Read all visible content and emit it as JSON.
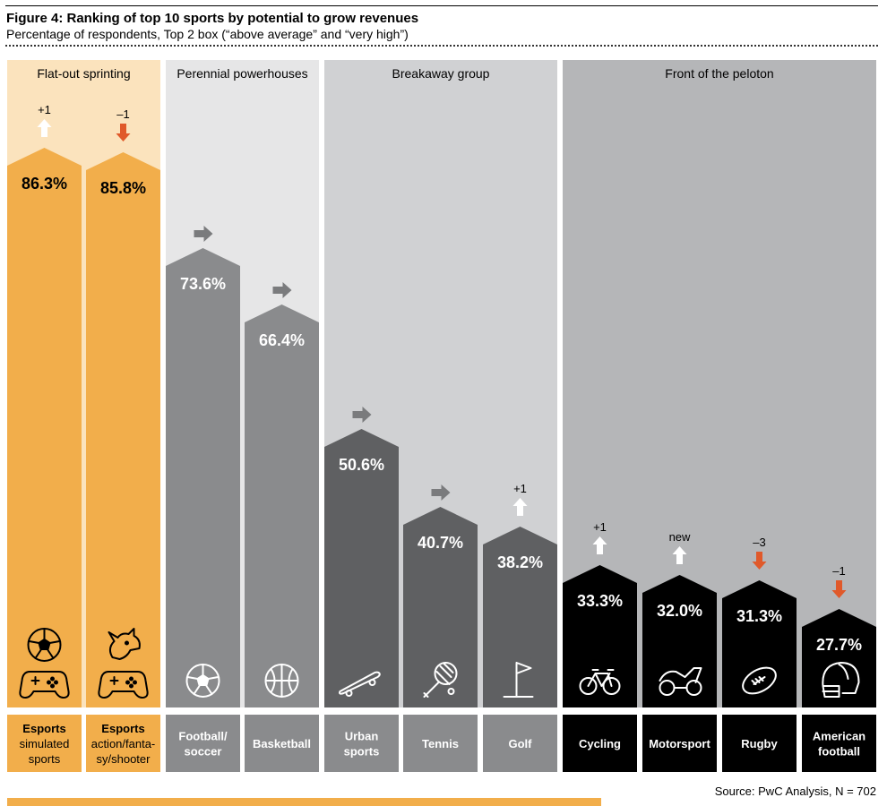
{
  "title": "Figure 4: Ranking of top 10 sports by potential to grow revenues",
  "subtitle": "Percentage of respondents, Top 2 box (“above average” and “very high”)",
  "source": "Source: PwC Analysis, N = 702",
  "colors": {
    "orange": "#f2ae4b",
    "orange_light": "#fbe3bd",
    "gray_panel_1": "#e6e6e7",
    "gray_panel_2": "#d0d1d3",
    "gray_panel_3": "#b5b6b8",
    "bar_gray_mid": "#8a8b8d",
    "bar_gray_dark": "#5f6062",
    "bar_black": "#000000",
    "arrow_red": "#e0592a"
  },
  "chart_data": {
    "type": "bar",
    "ylabel": "",
    "ylim": [
      0,
      100
    ],
    "groups": [
      {
        "name": "Flat-out sprinting",
        "categories": [
          0,
          1
        ]
      },
      {
        "name": "Perennial powerhouses",
        "categories": [
          2,
          3
        ]
      },
      {
        "name": "Breakaway group",
        "categories": [
          4,
          5,
          6
        ]
      },
      {
        "name": "Front of the peloton",
        "categories": [
          7,
          8,
          9,
          10
        ]
      }
    ],
    "categories": [
      "Esports simulated sports",
      "Esports action/fanta-sy/shooter",
      "Football/ soccer",
      "Basketball",
      "Urban sports",
      "Tennis",
      "Golf",
      "Cycling",
      "Motorsport",
      "Rugby",
      "American football"
    ],
    "category_lines": [
      [
        {
          "t": "Esports",
          "b": true
        },
        {
          "t": "simulated",
          "b": false
        },
        {
          "t": "sports",
          "b": false
        }
      ],
      [
        {
          "t": "Esports",
          "b": true
        },
        {
          "t": "action/fanta-",
          "b": false
        },
        {
          "t": "sy/shooter",
          "b": false
        }
      ],
      [
        {
          "t": "Football/",
          "b": true
        },
        {
          "t": "soccer",
          "b": true
        }
      ],
      [
        {
          "t": "Basketball",
          "b": true
        }
      ],
      [
        {
          "t": "Urban",
          "b": true
        },
        {
          "t": "sports",
          "b": true
        }
      ],
      [
        {
          "t": "Tennis",
          "b": true
        }
      ],
      [
        {
          "t": "Golf",
          "b": true
        }
      ],
      [
        {
          "t": "Cycling",
          "b": true
        }
      ],
      [
        {
          "t": "Motorsport",
          "b": true
        }
      ],
      [
        {
          "t": "Rugby",
          "b": true
        }
      ],
      [
        {
          "t": "American",
          "b": true
        },
        {
          "t": "football",
          "b": true
        }
      ]
    ],
    "values": [
      86.3,
      85.8,
      73.6,
      66.4,
      50.6,
      40.7,
      38.2,
      33.3,
      32.0,
      31.3,
      27.7
    ],
    "value_labels": [
      "86.3%",
      "85.8%",
      "73.6%",
      "66.4%",
      "50.6%",
      "40.7%",
      "38.2%",
      "33.3%",
      "32.0%",
      "31.3%",
      "27.7%"
    ],
    "rank_change": [
      {
        "dir": "up",
        "label": "+1"
      },
      {
        "dir": "down",
        "label": "–1"
      },
      {
        "dir": "same",
        "label": ""
      },
      {
        "dir": "same",
        "label": ""
      },
      {
        "dir": "same",
        "label": ""
      },
      {
        "dir": "same",
        "label": ""
      },
      {
        "dir": "up",
        "label": "+1"
      },
      {
        "dir": "up",
        "label": "+1"
      },
      {
        "dir": "up",
        "label": "new"
      },
      {
        "dir": "down",
        "label": "–3"
      },
      {
        "dir": "down",
        "label": "–1"
      }
    ],
    "icons": [
      [
        "soccer-ball-icon",
        "gamepad-icon"
      ],
      [
        "dragon-icon",
        "gamepad-icon"
      ],
      [
        "soccer-ball-icon"
      ],
      [
        "basketball-icon"
      ],
      [
        "skateboard-icon"
      ],
      [
        "tennis-racket-icon"
      ],
      [
        "golf-flag-icon"
      ],
      [
        "bicycle-icon"
      ],
      [
        "motorcycle-icon"
      ],
      [
        "rugby-ball-icon"
      ],
      [
        "football-helmet-icon"
      ]
    ]
  }
}
